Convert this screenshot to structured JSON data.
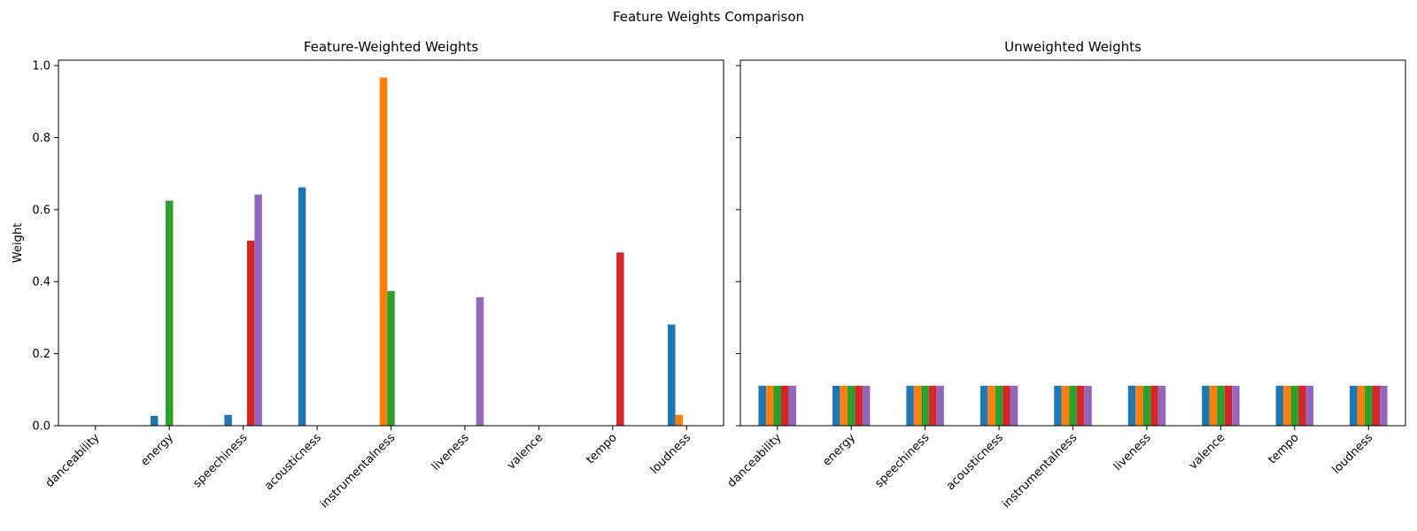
{
  "figure": {
    "suptitle": "Feature Weights Comparison"
  },
  "colors": [
    "#1f77b4",
    "#ff7f0e",
    "#2ca02c",
    "#d62728",
    "#9467bd"
  ],
  "chart_data": [
    {
      "type": "bar",
      "title": "Feature-Weighted Weights",
      "xlabel": "",
      "ylabel": "Weight",
      "ylim": [
        0,
        1.0
      ],
      "yticks": [
        "0.0",
        "0.2",
        "0.4",
        "0.6",
        "0.8",
        "1.0"
      ],
      "grid": false,
      "legend": "none",
      "categories": [
        "danceability",
        "energy",
        "speechiness",
        "acousticness",
        "instrumentalness",
        "liveness",
        "valence",
        "tempo",
        "loudness"
      ],
      "series": [
        {
          "values": [
            0.0,
            0.027,
            0.03,
            0.662,
            0.0,
            0.0,
            0.0,
            0.0,
            0.281
          ]
        },
        {
          "values": [
            0.0,
            0.0,
            0.0,
            0.0,
            0.967,
            0.0,
            0.0,
            0.0,
            0.03
          ]
        },
        {
          "values": [
            0.0,
            0.625,
            0.0,
            0.0,
            0.374,
            0.0,
            0.0,
            0.0,
            0.0
          ]
        },
        {
          "values": [
            0.0,
            0.0,
            0.514,
            0.0,
            0.0,
            0.0,
            0.0,
            0.481,
            0.0
          ]
        },
        {
          "values": [
            0.0,
            0.0,
            0.642,
            0.0,
            0.0,
            0.357,
            0.0,
            0.0,
            0.0
          ]
        }
      ]
    },
    {
      "type": "bar",
      "title": "Unweighted Weights",
      "xlabel": "",
      "ylabel": "",
      "ylim": [
        0,
        1.0
      ],
      "grid": false,
      "legend": "none",
      "categories": [
        "danceability",
        "energy",
        "speechiness",
        "acousticness",
        "instrumentalness",
        "liveness",
        "valence",
        "tempo",
        "loudness"
      ],
      "series": [
        {
          "values": [
            0.111,
            0.111,
            0.111,
            0.111,
            0.111,
            0.111,
            0.111,
            0.111,
            0.111
          ]
        },
        {
          "values": [
            0.111,
            0.111,
            0.111,
            0.111,
            0.111,
            0.111,
            0.111,
            0.111,
            0.111
          ]
        },
        {
          "values": [
            0.111,
            0.111,
            0.111,
            0.111,
            0.111,
            0.111,
            0.111,
            0.111,
            0.111
          ]
        },
        {
          "values": [
            0.111,
            0.111,
            0.111,
            0.111,
            0.111,
            0.111,
            0.111,
            0.111,
            0.111
          ]
        },
        {
          "values": [
            0.111,
            0.111,
            0.111,
            0.111,
            0.111,
            0.111,
            0.111,
            0.111,
            0.111
          ]
        }
      ]
    }
  ]
}
